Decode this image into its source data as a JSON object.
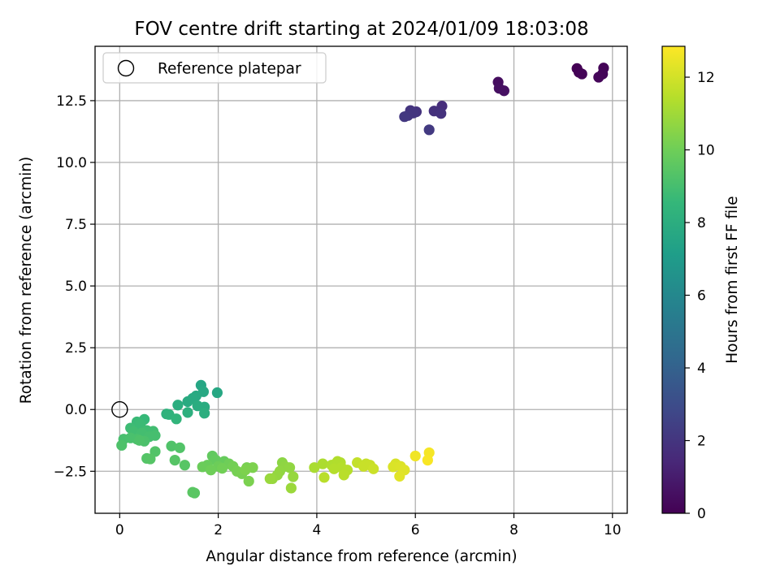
{
  "chart_data": {
    "type": "scatter",
    "title": "FOV centre drift starting at 2024/01/09 18:03:08",
    "xlabel": "Angular distance from reference (arcmin)",
    "ylabel": "Rotation from reference (arcmin)",
    "xlim": [
      -0.5,
      10.3
    ],
    "ylim": [
      -4.2,
      14.7
    ],
    "xticks": [
      0,
      2,
      4,
      6,
      8,
      10
    ],
    "xtick_labels": [
      "0",
      "2",
      "4",
      "6",
      "8",
      "10"
    ],
    "yticks": [
      -2.5,
      0.0,
      2.5,
      5.0,
      7.5,
      10.0,
      12.5
    ],
    "ytick_labels": [
      "−2.5",
      "0.0",
      "2.5",
      "5.0",
      "7.5",
      "10.0",
      "12.5"
    ],
    "grid": true,
    "legend": {
      "placement": "upper-left",
      "entries": [
        "Reference platepar"
      ]
    },
    "reference_point": {
      "x": 0.0,
      "y": 0.0
    },
    "colorbar": {
      "label": "Hours from first FF file",
      "colormap": "viridis",
      "range": [
        0,
        12.85
      ],
      "ticks": [
        0,
        2,
        4,
        6,
        8,
        10,
        12
      ],
      "tick_labels": [
        "0",
        "2",
        "4",
        "6",
        "8",
        "10",
        "12"
      ],
      "stops": [
        "#440154",
        "#482878",
        "#3e4989",
        "#31688e",
        "#26828e",
        "#1f9e89",
        "#35b779",
        "#6ece58",
        "#b5de2b",
        "#fde725"
      ]
    },
    "points": [
      {
        "x": 9.28,
        "y": 13.8,
        "h": 0.0
      },
      {
        "x": 9.32,
        "y": 13.65,
        "h": 0.05
      },
      {
        "x": 9.38,
        "y": 13.58,
        "h": 0.1
      },
      {
        "x": 9.82,
        "y": 13.82,
        "h": 0.12
      },
      {
        "x": 9.8,
        "y": 13.58,
        "h": 0.15
      },
      {
        "x": 9.72,
        "y": 13.45,
        "h": 0.18
      },
      {
        "x": 7.68,
        "y": 13.25,
        "h": 0.45
      },
      {
        "x": 7.7,
        "y": 13.0,
        "h": 0.5
      },
      {
        "x": 7.8,
        "y": 12.9,
        "h": 0.55
      },
      {
        "x": 6.54,
        "y": 12.28,
        "h": 1.7
      },
      {
        "x": 6.38,
        "y": 12.08,
        "h": 1.8
      },
      {
        "x": 6.52,
        "y": 11.98,
        "h": 1.85
      },
      {
        "x": 6.02,
        "y": 12.05,
        "h": 1.9
      },
      {
        "x": 5.9,
        "y": 12.1,
        "h": 1.95
      },
      {
        "x": 5.96,
        "y": 12.0,
        "h": 2.0
      },
      {
        "x": 5.85,
        "y": 11.9,
        "h": 2.05
      },
      {
        "x": 5.78,
        "y": 11.85,
        "h": 2.1
      },
      {
        "x": 6.28,
        "y": 11.32,
        "h": 2.2
      },
      {
        "x": 1.65,
        "y": 0.98,
        "h": 7.6
      },
      {
        "x": 1.98,
        "y": 0.68,
        "h": 7.65
      },
      {
        "x": 1.7,
        "y": 0.72,
        "h": 7.7
      },
      {
        "x": 1.55,
        "y": 0.55,
        "h": 7.75
      },
      {
        "x": 1.48,
        "y": 0.45,
        "h": 7.8
      },
      {
        "x": 1.38,
        "y": 0.32,
        "h": 7.85
      },
      {
        "x": 1.72,
        "y": 0.1,
        "h": 7.9
      },
      {
        "x": 1.58,
        "y": 0.15,
        "h": 7.95
      },
      {
        "x": 1.18,
        "y": 0.18,
        "h": 8.0
      },
      {
        "x": 1.72,
        "y": -0.15,
        "h": 8.05
      },
      {
        "x": 1.38,
        "y": -0.12,
        "h": 8.1
      },
      {
        "x": 0.95,
        "y": -0.18,
        "h": 8.2
      },
      {
        "x": 1.0,
        "y": -0.2,
        "h": 8.3
      },
      {
        "x": 1.15,
        "y": -0.38,
        "h": 8.4
      },
      {
        "x": 0.5,
        "y": -0.4,
        "h": 8.6
      },
      {
        "x": 0.35,
        "y": -0.5,
        "h": 8.7
      },
      {
        "x": 0.42,
        "y": -0.6,
        "h": 8.75
      },
      {
        "x": 0.22,
        "y": -0.75,
        "h": 8.8
      },
      {
        "x": 0.55,
        "y": -0.85,
        "h": 8.85
      },
      {
        "x": 0.68,
        "y": -0.88,
        "h": 8.9
      },
      {
        "x": 0.28,
        "y": -0.9,
        "h": 8.9
      },
      {
        "x": 0.45,
        "y": -0.95,
        "h": 8.95
      },
      {
        "x": 0.72,
        "y": -1.05,
        "h": 9.0
      },
      {
        "x": 0.6,
        "y": -1.1,
        "h": 9.0
      },
      {
        "x": 0.08,
        "y": -1.2,
        "h": 9.05
      },
      {
        "x": 0.22,
        "y": -1.15,
        "h": 9.1
      },
      {
        "x": 0.35,
        "y": -1.2,
        "h": 9.1
      },
      {
        "x": 0.5,
        "y": -1.28,
        "h": 9.15
      },
      {
        "x": 0.4,
        "y": -1.25,
        "h": 9.2
      },
      {
        "x": 0.04,
        "y": -1.45,
        "h": 9.2
      },
      {
        "x": 1.05,
        "y": -1.48,
        "h": 9.25
      },
      {
        "x": 1.22,
        "y": -1.55,
        "h": 9.3
      },
      {
        "x": 0.72,
        "y": -1.7,
        "h": 9.3
      },
      {
        "x": 0.55,
        "y": -1.98,
        "h": 9.35
      },
      {
        "x": 0.62,
        "y": -2.0,
        "h": 9.4
      },
      {
        "x": 1.12,
        "y": -2.05,
        "h": 9.4
      },
      {
        "x": 1.32,
        "y": -2.25,
        "h": 9.45
      },
      {
        "x": 1.48,
        "y": -3.35,
        "h": 9.5
      },
      {
        "x": 1.52,
        "y": -3.38,
        "h": 9.5
      },
      {
        "x": 1.88,
        "y": -1.88,
        "h": 9.7
      },
      {
        "x": 1.95,
        "y": -2.05,
        "h": 9.75
      },
      {
        "x": 2.12,
        "y": -2.1,
        "h": 9.8
      },
      {
        "x": 1.78,
        "y": -2.25,
        "h": 9.85
      },
      {
        "x": 1.68,
        "y": -2.32,
        "h": 9.9
      },
      {
        "x": 2.0,
        "y": -2.3,
        "h": 9.95
      },
      {
        "x": 2.22,
        "y": -2.2,
        "h": 10.0
      },
      {
        "x": 1.85,
        "y": -2.45,
        "h": 10.0
      },
      {
        "x": 2.08,
        "y": -2.38,
        "h": 10.05
      },
      {
        "x": 2.3,
        "y": -2.3,
        "h": 10.1
      },
      {
        "x": 2.38,
        "y": -2.5,
        "h": 10.15
      },
      {
        "x": 2.48,
        "y": -2.6,
        "h": 10.2
      },
      {
        "x": 2.58,
        "y": -2.35,
        "h": 10.2
      },
      {
        "x": 2.62,
        "y": -2.9,
        "h": 10.25
      },
      {
        "x": 2.7,
        "y": -2.35,
        "h": 10.3
      },
      {
        "x": 2.55,
        "y": -2.45,
        "h": 10.3
      },
      {
        "x": 3.3,
        "y": -2.15,
        "h": 10.6
      },
      {
        "x": 3.35,
        "y": -2.3,
        "h": 10.65
      },
      {
        "x": 3.25,
        "y": -2.5,
        "h": 10.7
      },
      {
        "x": 3.45,
        "y": -2.35,
        "h": 10.7
      },
      {
        "x": 3.2,
        "y": -2.65,
        "h": 10.75
      },
      {
        "x": 3.1,
        "y": -2.8,
        "h": 10.8
      },
      {
        "x": 3.52,
        "y": -2.72,
        "h": 10.8
      },
      {
        "x": 3.05,
        "y": -2.8,
        "h": 10.85
      },
      {
        "x": 3.48,
        "y": -3.18,
        "h": 10.9
      },
      {
        "x": 3.95,
        "y": -2.35,
        "h": 11.2
      },
      {
        "x": 4.12,
        "y": -2.2,
        "h": 11.25
      },
      {
        "x": 4.3,
        "y": -2.25,
        "h": 11.3
      },
      {
        "x": 4.38,
        "y": -2.2,
        "h": 11.3
      },
      {
        "x": 4.42,
        "y": -2.1,
        "h": 11.35
      },
      {
        "x": 4.48,
        "y": -2.15,
        "h": 11.35
      },
      {
        "x": 4.5,
        "y": -2.35,
        "h": 11.4
      },
      {
        "x": 4.35,
        "y": -2.4,
        "h": 11.4
      },
      {
        "x": 4.62,
        "y": -2.45,
        "h": 11.45
      },
      {
        "x": 4.55,
        "y": -2.65,
        "h": 11.5
      },
      {
        "x": 4.15,
        "y": -2.75,
        "h": 11.5
      },
      {
        "x": 4.82,
        "y": -2.15,
        "h": 11.7
      },
      {
        "x": 5.0,
        "y": -2.2,
        "h": 11.75
      },
      {
        "x": 4.95,
        "y": -2.3,
        "h": 11.8
      },
      {
        "x": 5.08,
        "y": -2.25,
        "h": 11.8
      },
      {
        "x": 5.15,
        "y": -2.4,
        "h": 11.85
      },
      {
        "x": 5.6,
        "y": -2.2,
        "h": 12.1
      },
      {
        "x": 5.55,
        "y": -2.32,
        "h": 12.15
      },
      {
        "x": 5.7,
        "y": -2.3,
        "h": 12.2
      },
      {
        "x": 5.78,
        "y": -2.45,
        "h": 12.25
      },
      {
        "x": 5.68,
        "y": -2.7,
        "h": 12.3
      },
      {
        "x": 6.0,
        "y": -1.88,
        "h": 12.6
      },
      {
        "x": 6.28,
        "y": -1.75,
        "h": 12.7
      },
      {
        "x": 6.25,
        "y": -2.05,
        "h": 12.75
      }
    ]
  }
}
